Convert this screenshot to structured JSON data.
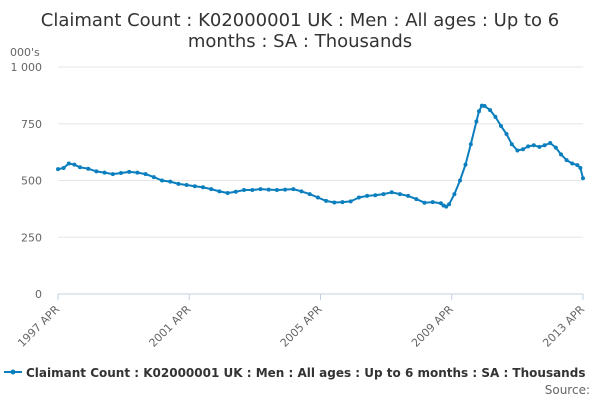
{
  "chart_data": {
    "type": "line",
    "title_lines": [
      "Claimant Count : K02000001 UK : Men : All ages : Up to 6",
      "months : SA : Thousands"
    ],
    "ylabel": "000's",
    "ylim": [
      0,
      1000
    ],
    "yticks": [
      0,
      250,
      500,
      750,
      1000
    ],
    "ytick_labels": [
      "0",
      "250",
      "500",
      "750",
      "1 000"
    ],
    "xlim": [
      1997.25,
      2013.25
    ],
    "xticks": [
      1997.25,
      2001.25,
      2005.25,
      2009.25,
      2013.25
    ],
    "xtick_labels": [
      "1997 APR",
      "2001 APR",
      "2005 APR",
      "2009 APR",
      "2013 APR"
    ],
    "grid": "horizontal",
    "legend_position": "bottom",
    "series": [
      {
        "name": "Claimant Count : K02000001 UK : Men : All ages : Up to 6 months : SA : Thousands",
        "color": "#0b7fbe",
        "points": [
          [
            1997.25,
            550
          ],
          [
            1997.42,
            555
          ],
          [
            1997.58,
            575
          ],
          [
            1997.75,
            570
          ],
          [
            1997.92,
            558
          ],
          [
            1998.17,
            552
          ],
          [
            1998.42,
            540
          ],
          [
            1998.67,
            535
          ],
          [
            1998.92,
            528
          ],
          [
            1999.17,
            533
          ],
          [
            1999.42,
            538
          ],
          [
            1999.67,
            535
          ],
          [
            1999.92,
            528
          ],
          [
            2000.17,
            515
          ],
          [
            2000.42,
            500
          ],
          [
            2000.67,
            495
          ],
          [
            2000.92,
            485
          ],
          [
            2001.17,
            480
          ],
          [
            2001.42,
            475
          ],
          [
            2001.67,
            470
          ],
          [
            2001.92,
            462
          ],
          [
            2002.17,
            452
          ],
          [
            2002.42,
            445
          ],
          [
            2002.67,
            450
          ],
          [
            2002.92,
            458
          ],
          [
            2003.17,
            458
          ],
          [
            2003.42,
            462
          ],
          [
            2003.67,
            460
          ],
          [
            2003.92,
            458
          ],
          [
            2004.17,
            460
          ],
          [
            2004.42,
            462
          ],
          [
            2004.67,
            452
          ],
          [
            2004.92,
            440
          ],
          [
            2005.17,
            425
          ],
          [
            2005.42,
            410
          ],
          [
            2005.67,
            403
          ],
          [
            2005.92,
            405
          ],
          [
            2006.17,
            408
          ],
          [
            2006.42,
            425
          ],
          [
            2006.67,
            432
          ],
          [
            2006.92,
            435
          ],
          [
            2007.17,
            440
          ],
          [
            2007.42,
            448
          ],
          [
            2007.67,
            440
          ],
          [
            2007.92,
            432
          ],
          [
            2008.17,
            418
          ],
          [
            2008.42,
            402
          ],
          [
            2008.67,
            405
          ],
          [
            2008.92,
            400
          ],
          [
            2009.0,
            390
          ],
          [
            2009.08,
            385
          ],
          [
            2009.17,
            395
          ],
          [
            2009.33,
            440
          ],
          [
            2009.5,
            500
          ],
          [
            2009.67,
            570
          ],
          [
            2009.83,
            660
          ],
          [
            2010.0,
            760
          ],
          [
            2010.08,
            805
          ],
          [
            2010.17,
            830
          ],
          [
            2010.25,
            828
          ],
          [
            2010.42,
            810
          ],
          [
            2010.58,
            780
          ],
          [
            2010.75,
            740
          ],
          [
            2010.92,
            705
          ],
          [
            2011.08,
            660
          ],
          [
            2011.25,
            632
          ],
          [
            2011.42,
            638
          ],
          [
            2011.58,
            650
          ],
          [
            2011.75,
            655
          ],
          [
            2011.92,
            648
          ],
          [
            2012.08,
            655
          ],
          [
            2012.25,
            665
          ],
          [
            2012.42,
            645
          ],
          [
            2012.58,
            615
          ],
          [
            2012.75,
            590
          ],
          [
            2012.92,
            575
          ],
          [
            2013.08,
            568
          ],
          [
            2013.17,
            555
          ],
          [
            2013.25,
            510
          ]
        ]
      }
    ]
  },
  "source_label": "Source:"
}
